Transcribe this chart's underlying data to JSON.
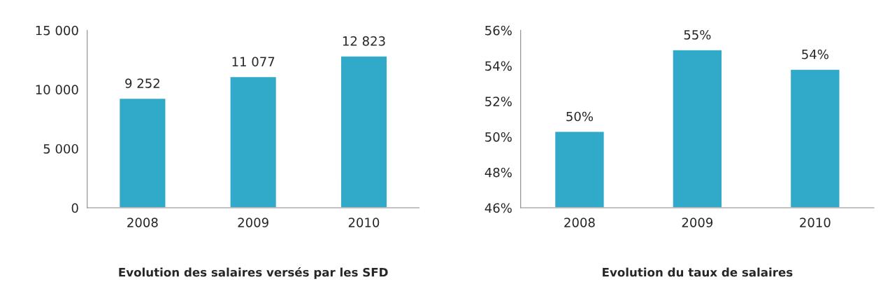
{
  "chart_data": [
    {
      "type": "bar",
      "title": "Evolution des salaires versés par les SFD",
      "categories": [
        "2008",
        "2009",
        "2010"
      ],
      "values": [
        9252,
        11077,
        12823
      ],
      "value_labels": [
        "9 252",
        "11 077",
        "12 823"
      ],
      "color": "#31a9c9",
      "ylim": [
        0,
        15000
      ],
      "yticks": [
        0,
        {
          "value": 5000,
          "label": "5 000"
        },
        {
          "value": 10000,
          "label": "10 000"
        },
        {
          "value": 15000,
          "label": "15 000"
        }
      ],
      "grid": false,
      "legend": false
    },
    {
      "type": "bar",
      "title": "Evolution du taux de salaires",
      "categories": [
        "2008",
        "2009",
        "2010"
      ],
      "values": [
        50.3,
        54.9,
        53.8
      ],
      "value_labels": [
        "50%",
        "55%",
        "54%"
      ],
      "color": "#31a9c9",
      "ylim": [
        46,
        56
      ],
      "yticks": [
        {
          "value": 46,
          "label": "46%"
        },
        {
          "value": 48,
          "label": "48%"
        },
        {
          "value": 50,
          "label": "50%"
        },
        {
          "value": 52,
          "label": "52%"
        },
        {
          "value": 54,
          "label": "54%"
        },
        {
          "value": 56,
          "label": "56%"
        }
      ],
      "grid": false,
      "legend": false
    }
  ]
}
